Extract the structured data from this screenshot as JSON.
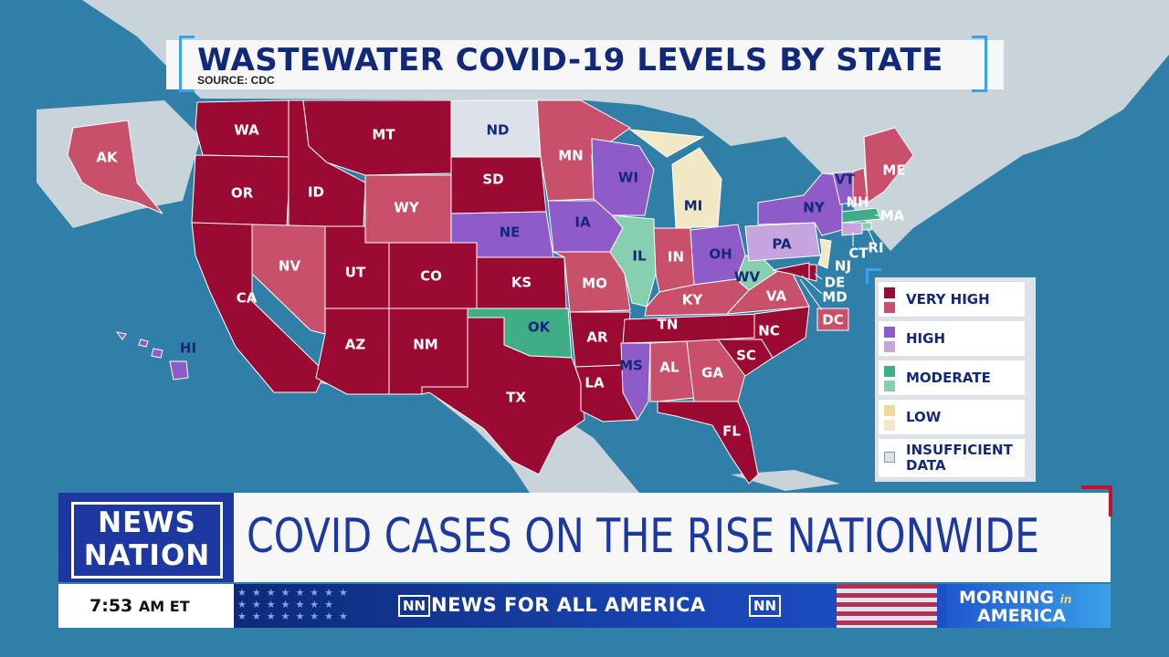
{
  "title": "WASTEWATER COVID-19 LEVELS BY STATE",
  "source": "SOURCE: CDC",
  "colors": {
    "very_high_dark": "#9b0a33",
    "very_high_light": "#c8506a",
    "high_dark": "#8f5bc9",
    "high_light": "#c6a4dd",
    "moderate_dark": "#3fae86",
    "moderate_light": "#86cfb1",
    "low_dark": "#f0d99a",
    "low_light": "#f3e8c6",
    "insufficient": "#dde2ea",
    "ocean": "#2f7fa8",
    "land_other": "#c9d3da"
  },
  "legend": [
    {
      "label": "VERY HIGH",
      "swatches": [
        "#9b0a33",
        "#c8506a"
      ]
    },
    {
      "label": "HIGH",
      "swatches": [
        "#8f5bc9",
        "#c6a4dd"
      ]
    },
    {
      "label": "MODERATE",
      "swatches": [
        "#3fae86",
        "#86cfb1"
      ]
    },
    {
      "label": "LOW",
      "swatches": [
        "#f0d99a",
        "#f3e8c6"
      ]
    },
    {
      "label": "INSUFFICIENT DATA",
      "swatches": [
        "#dde2ea"
      ]
    }
  ],
  "states": [
    {
      "abbr": "WA",
      "level": "very_high_dark"
    },
    {
      "abbr": "OR",
      "level": "very_high_dark"
    },
    {
      "abbr": "CA",
      "level": "very_high_dark"
    },
    {
      "abbr": "ID",
      "level": "very_high_dark"
    },
    {
      "abbr": "NV",
      "level": "very_high_light"
    },
    {
      "abbr": "MT",
      "level": "very_high_dark"
    },
    {
      "abbr": "WY",
      "level": "very_high_light"
    },
    {
      "abbr": "UT",
      "level": "very_high_dark"
    },
    {
      "abbr": "AZ",
      "level": "very_high_dark"
    },
    {
      "abbr": "CO",
      "level": "very_high_dark"
    },
    {
      "abbr": "NM",
      "level": "very_high_dark"
    },
    {
      "abbr": "ND",
      "level": "insufficient"
    },
    {
      "abbr": "SD",
      "level": "very_high_dark"
    },
    {
      "abbr": "NE",
      "level": "high_dark"
    },
    {
      "abbr": "KS",
      "level": "very_high_dark"
    },
    {
      "abbr": "OK",
      "level": "moderate_dark"
    },
    {
      "abbr": "TX",
      "level": "very_high_dark"
    },
    {
      "abbr": "MN",
      "level": "very_high_light"
    },
    {
      "abbr": "IA",
      "level": "high_dark"
    },
    {
      "abbr": "MO",
      "level": "very_high_light"
    },
    {
      "abbr": "AR",
      "level": "very_high_dark"
    },
    {
      "abbr": "LA",
      "level": "very_high_dark"
    },
    {
      "abbr": "WI",
      "level": "high_dark"
    },
    {
      "abbr": "IL",
      "level": "moderate_light"
    },
    {
      "abbr": "MI",
      "level": "low_light"
    },
    {
      "abbr": "IN",
      "level": "very_high_light"
    },
    {
      "abbr": "OH",
      "level": "high_dark"
    },
    {
      "abbr": "KY",
      "level": "very_high_light"
    },
    {
      "abbr": "TN",
      "level": "very_high_dark"
    },
    {
      "abbr": "MS",
      "level": "high_dark"
    },
    {
      "abbr": "AL",
      "level": "very_high_light"
    },
    {
      "abbr": "GA",
      "level": "very_high_light"
    },
    {
      "abbr": "FL",
      "level": "very_high_dark"
    },
    {
      "abbr": "SC",
      "level": "very_high_dark"
    },
    {
      "abbr": "NC",
      "level": "very_high_dark"
    },
    {
      "abbr": "VA",
      "level": "very_high_light"
    },
    {
      "abbr": "WV",
      "level": "moderate_light"
    },
    {
      "abbr": "PA",
      "level": "high_light"
    },
    {
      "abbr": "NY",
      "level": "high_dark"
    },
    {
      "abbr": "VT",
      "level": "high_dark"
    },
    {
      "abbr": "NH",
      "level": "very_high_light"
    },
    {
      "abbr": "ME",
      "level": "very_high_light"
    },
    {
      "abbr": "MA",
      "level": "moderate_dark"
    },
    {
      "abbr": "RI",
      "level": "moderate_light"
    },
    {
      "abbr": "CT",
      "level": "high_light"
    },
    {
      "abbr": "NJ",
      "level": "low_light"
    },
    {
      "abbr": "DE",
      "level": "very_high_dark"
    },
    {
      "abbr": "MD",
      "level": "very_high_dark"
    },
    {
      "abbr": "DC",
      "level": "very_high_light"
    },
    {
      "abbr": "AK",
      "level": "very_high_light"
    },
    {
      "abbr": "HI",
      "level": "high_dark"
    }
  ],
  "branding": {
    "logo_line1": "NEWS",
    "logo_line2": "NATION",
    "headline": "COVID CASES ON THE RISE NATIONWIDE",
    "time": "7:53",
    "time_suffix": "AM ET",
    "ticker_badge": "NN",
    "ticker_text": "NEWS FOR ALL AMERICA",
    "show_line1": "MORNING",
    "show_in": "in",
    "show_line2": "AMERICA"
  }
}
